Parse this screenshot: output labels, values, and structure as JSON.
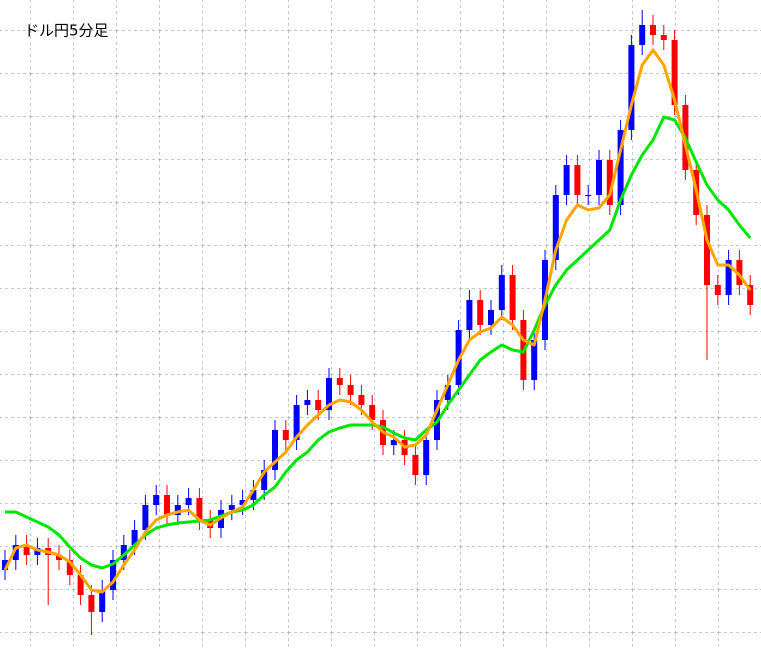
{
  "chart_data": {
    "type": "candlestick",
    "title": "ドル円5分足",
    "ylim": [
      0,
      650
    ],
    "up_color": "#0000ff",
    "down_color": "#ff0000",
    "open": [
      80,
      90,
      105,
      95,
      102,
      95,
      90,
      75,
      55,
      38,
      60,
      90,
      105,
      120,
      145,
      155,
      135,
      145,
      152,
      130,
      122,
      140,
      145,
      150,
      160,
      180,
      220,
      210,
      245,
      250,
      240,
      272,
      265,
      255,
      245,
      230,
      205,
      210,
      195,
      175,
      210,
      250,
      265,
      320,
      350,
      325,
      340,
      375,
      330,
      270,
      310,
      390,
      455,
      485,
      455,
      455,
      490,
      445,
      520,
      605,
      625,
      615,
      610,
      545,
      480,
      435,
      365,
      355,
      390,
      365
    ],
    "high": [
      100,
      115,
      115,
      112,
      112,
      105,
      100,
      85,
      65,
      70,
      100,
      115,
      130,
      155,
      165,
      165,
      155,
      162,
      162,
      140,
      150,
      155,
      160,
      170,
      190,
      230,
      230,
      255,
      260,
      260,
      282,
      282,
      275,
      265,
      255,
      240,
      220,
      220,
      205,
      220,
      260,
      275,
      330,
      360,
      360,
      350,
      385,
      385,
      340,
      320,
      400,
      465,
      495,
      495,
      465,
      500,
      500,
      530,
      615,
      640,
      635,
      625,
      620,
      555,
      490,
      445,
      375,
      400,
      400,
      375
    ],
    "low": [
      70,
      80,
      85,
      85,
      45,
      80,
      65,
      45,
      15,
      28,
      50,
      80,
      95,
      110,
      135,
      125,
      125,
      135,
      120,
      112,
      112,
      130,
      135,
      140,
      150,
      170,
      200,
      200,
      235,
      230,
      230,
      255,
      245,
      235,
      220,
      195,
      195,
      185,
      165,
      165,
      200,
      240,
      255,
      310,
      315,
      315,
      330,
      320,
      260,
      260,
      300,
      380,
      445,
      445,
      445,
      445,
      435,
      435,
      510,
      595,
      605,
      600,
      535,
      470,
      425,
      290,
      345,
      345,
      355,
      335
    ],
    "close": [
      90,
      105,
      95,
      102,
      95,
      90,
      75,
      55,
      38,
      60,
      90,
      105,
      120,
      145,
      155,
      135,
      145,
      152,
      130,
      122,
      140,
      145,
      150,
      160,
      180,
      220,
      210,
      245,
      250,
      240,
      272,
      265,
      255,
      245,
      230,
      205,
      210,
      195,
      175,
      210,
      250,
      265,
      320,
      350,
      325,
      340,
      375,
      330,
      270,
      310,
      390,
      455,
      485,
      455,
      455,
      490,
      445,
      520,
      605,
      625,
      615,
      610,
      545,
      480,
      435,
      365,
      355,
      390,
      365,
      345
    ],
    "lines": [
      {
        "color": "#00e600",
        "values": [
          138,
          138,
          133,
          128,
          123,
          115,
          103,
          92,
          85,
          82,
          86,
          95,
          105,
          115,
          122,
          125,
          127,
          128,
          129,
          130,
          134,
          138,
          140,
          145,
          155,
          163,
          178,
          190,
          198,
          210,
          218,
          222,
          225,
          225,
          225,
          223,
          217,
          212,
          210,
          220,
          228,
          245,
          260,
          275,
          290,
          298,
          305,
          300,
          298,
          320,
          345,
          365,
          380,
          390,
          400,
          410,
          420,
          450,
          475,
          495,
          510,
          533,
          530,
          512,
          488,
          465,
          450,
          440,
          425,
          412
        ]
      },
      {
        "color": "#ffa500",
        "values": [
          80,
          102,
          105,
          100,
          98,
          95,
          88,
          75,
          60,
          58,
          68,
          85,
          100,
          118,
          130,
          135,
          138,
          140,
          130,
          125,
          132,
          138,
          143,
          160,
          178,
          188,
          198,
          213,
          225,
          235,
          245,
          250,
          248,
          240,
          228,
          218,
          213,
          203,
          205,
          215,
          240,
          265,
          290,
          310,
          318,
          322,
          333,
          325,
          310,
          305,
          350,
          400,
          430,
          445,
          440,
          442,
          455,
          500,
          545,
          585,
          600,
          585,
          550,
          505,
          460,
          410,
          385,
          385,
          375,
          360
        ]
      }
    ]
  }
}
